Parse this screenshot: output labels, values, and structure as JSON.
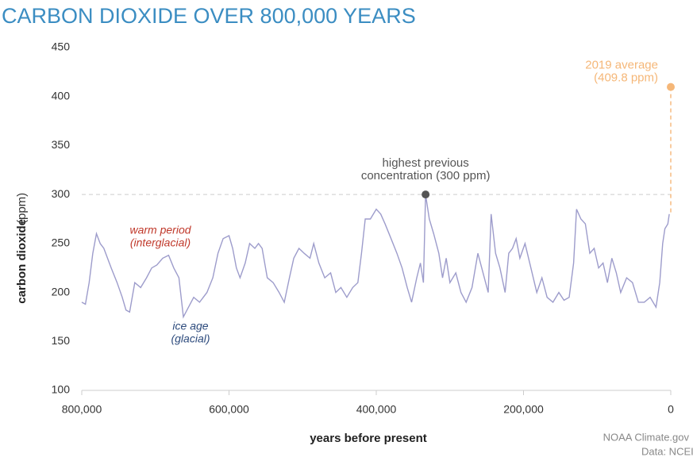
{
  "chart_data": {
    "type": "line",
    "title": "CARBON DIOXIDE OVER 800,000 YEARS",
    "xlabel": "years before present",
    "ylabel": [
      "carbon dioxide",
      "(ppm)"
    ],
    "color": "#9d9ccb",
    "x": [
      800000,
      795000,
      790000,
      785000,
      780000,
      775000,
      770000,
      760000,
      752000,
      745000,
      740000,
      735000,
      728000,
      720000,
      712000,
      705000,
      698000,
      690000,
      682000,
      675000,
      668000,
      662000,
      655000,
      648000,
      640000,
      630000,
      622000,
      615000,
      608000,
      600000,
      595000,
      590000,
      585000,
      578000,
      572000,
      565000,
      560000,
      555000,
      548000,
      540000,
      532000,
      525000,
      518000,
      512000,
      505000,
      498000,
      490000,
      485000,
      478000,
      470000,
      462000,
      455000,
      448000,
      440000,
      432000,
      425000,
      420000,
      415000,
      408000,
      400000,
      394000,
      388000,
      380000,
      372000,
      365000,
      358000,
      352000,
      345000,
      340000,
      336000,
      333000,
      328000,
      322000,
      315000,
      310000,
      305000,
      300000,
      292000,
      285000,
      278000,
      270000,
      262000,
      255000,
      248000,
      244000,
      238000,
      232000,
      225000,
      220000,
      215000,
      210000,
      205000,
      198000,
      190000,
      182000,
      175000,
      168000,
      160000,
      152000,
      145000,
      138000,
      132000,
      128000,
      122000,
      116000,
      110000,
      104000,
      98000,
      92000,
      86000,
      80000,
      74000,
      68000,
      60000,
      52000,
      44000,
      36000,
      28000,
      20000,
      15000,
      11000,
      8000,
      4000,
      2000
    ],
    "values": [
      190,
      188,
      210,
      240,
      260,
      250,
      245,
      225,
      210,
      195,
      182,
      180,
      210,
      205,
      215,
      225,
      228,
      235,
      238,
      225,
      215,
      175,
      185,
      195,
      190,
      200,
      215,
      240,
      255,
      258,
      245,
      225,
      215,
      230,
      250,
      245,
      250,
      245,
      215,
      210,
      200,
      190,
      215,
      235,
      245,
      240,
      235,
      250,
      230,
      215,
      220,
      200,
      205,
      195,
      205,
      210,
      240,
      275,
      275,
      285,
      280,
      270,
      255,
      240,
      225,
      205,
      190,
      215,
      230,
      210,
      300,
      275,
      260,
      240,
      215,
      235,
      210,
      220,
      200,
      190,
      205,
      240,
      220,
      200,
      280,
      240,
      225,
      200,
      240,
      245,
      255,
      235,
      250,
      225,
      200,
      215,
      195,
      190,
      200,
      192,
      195,
      230,
      285,
      275,
      270,
      240,
      245,
      225,
      230,
      210,
      235,
      220,
      200,
      215,
      210,
      190,
      190,
      195,
      185,
      210,
      250,
      265,
      270,
      280
    ],
    "xlim": [
      800000,
      0
    ],
    "ylim": [
      100,
      450
    ],
    "xticks": [
      {
        "value": 800000,
        "label": "800,000"
      },
      {
        "value": 600000,
        "label": "600,000"
      },
      {
        "value": 400000,
        "label": "400,000"
      },
      {
        "value": 200000,
        "label": "200,000"
      },
      0
    ],
    "yticks": [
      100,
      150,
      200,
      250,
      300,
      350,
      400,
      450
    ],
    "points": [
      {
        "x": 333000,
        "y": 300,
        "color": "#555555",
        "text": [
          "highest previous",
          "concentration (300 ppm)"
        ]
      },
      {
        "x": 0,
        "y": 409.8,
        "color": "#f5b778",
        "text": [
          "2019 average",
          "(409.8 ppm)"
        ]
      }
    ],
    "annotations": [
      {
        "text": [
          "warm period",
          "(interglacial)"
        ],
        "color": "#c0392b"
      },
      {
        "text": [
          "ice age",
          "(glacial)"
        ],
        "color": "#2c4a7c"
      }
    ],
    "source": [
      "NOAA Climate.gov",
      "Data: NCEI"
    ]
  }
}
